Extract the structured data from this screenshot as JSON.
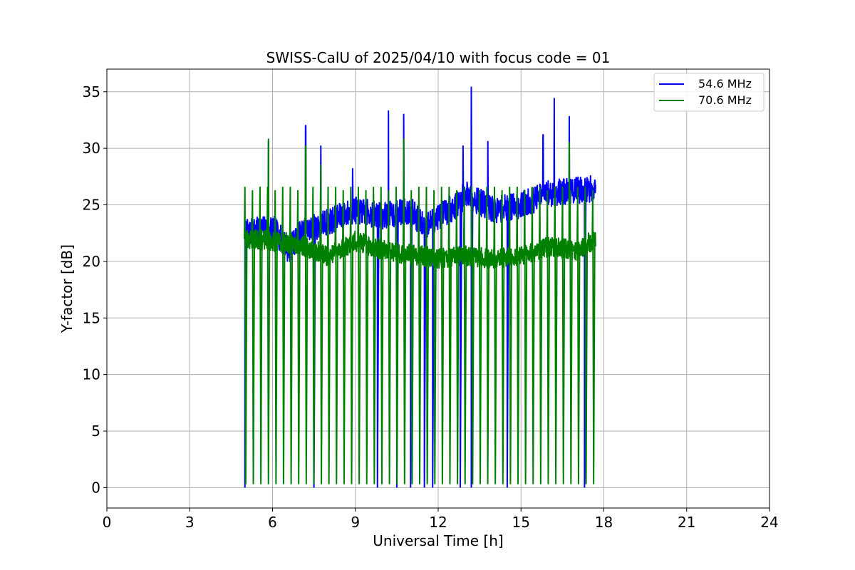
{
  "chart_data": {
    "type": "line",
    "title": "SWISS-CalU of 2025/04/10 with focus code = 01",
    "xlabel": "Universal Time [h]",
    "ylabel": "Y-factor [dB]",
    "xlim": [
      0,
      24
    ],
    "ylim": [
      -1.8,
      37
    ],
    "xticks": [
      0,
      3,
      6,
      9,
      12,
      15,
      18,
      21,
      24
    ],
    "xtick_labels": [
      "0",
      "3",
      "6",
      "9",
      "12",
      "15",
      "18",
      "21",
      "24"
    ],
    "yticks": [
      0,
      5,
      10,
      15,
      20,
      25,
      30,
      35
    ],
    "ytick_labels": [
      "0",
      "5",
      "10",
      "15",
      "20",
      "25",
      "30",
      "35"
    ],
    "grid": true,
    "legend_position": "top-right",
    "series": [
      {
        "name": "54.6 MHz",
        "color": "#0000ff",
        "baseline": [
          [
            5.0,
            22.5
          ],
          [
            6.0,
            23.0
          ],
          [
            6.6,
            21.0
          ],
          [
            7.0,
            22.5
          ],
          [
            8.0,
            23.5
          ],
          [
            9.0,
            24.5
          ],
          [
            10.0,
            24.0
          ],
          [
            11.0,
            24.5
          ],
          [
            11.5,
            23.0
          ],
          [
            12.0,
            24.0
          ],
          [
            12.7,
            25.0
          ],
          [
            13.0,
            26.0
          ],
          [
            14.0,
            24.5
          ],
          [
            15.0,
            25.0
          ],
          [
            16.0,
            26.0
          ],
          [
            17.7,
            26.5
          ]
        ],
        "spikes": [
          [
            5.85,
            30.6
          ],
          [
            7.2,
            32.0
          ],
          [
            7.75,
            30.2
          ],
          [
            8.9,
            28.2
          ],
          [
            10.2,
            33.3
          ],
          [
            10.75,
            33.0
          ],
          [
            12.9,
            30.2
          ],
          [
            13.2,
            35.4
          ],
          [
            13.8,
            30.6
          ],
          [
            15.8,
            31.2
          ],
          [
            16.2,
            34.4
          ],
          [
            16.75,
            32.8
          ]
        ],
        "drops": [
          5.0,
          7.5,
          9.8,
          10.5,
          11.0,
          11.5,
          11.8,
          12.8,
          13.2,
          14.5,
          17.3
        ]
      },
      {
        "name": "70.6 MHz",
        "color": "#008000",
        "baseline": [
          [
            5.0,
            22.0
          ],
          [
            6.0,
            21.8
          ],
          [
            7.0,
            21.5
          ],
          [
            8.0,
            20.5
          ],
          [
            9.0,
            21.8
          ],
          [
            10.0,
            21.0
          ],
          [
            11.0,
            20.6
          ],
          [
            12.0,
            20.3
          ],
          [
            13.0,
            20.5
          ],
          [
            14.0,
            20.2
          ],
          [
            15.0,
            20.5
          ],
          [
            16.0,
            21.3
          ],
          [
            17.0,
            21.0
          ],
          [
            17.7,
            22.0
          ]
        ],
        "spikes": [
          [
            5.85,
            30.8
          ],
          [
            7.2,
            30.2
          ],
          [
            7.75,
            28.5
          ],
          [
            10.75,
            30.8
          ],
          [
            16.75,
            30.5
          ]
        ],
        "cycle_start": 5.0,
        "cycle_end": 17.6,
        "cycle_count": 47,
        "cycle_peak": 26.6,
        "cycle_floor": 0.3
      }
    ]
  }
}
